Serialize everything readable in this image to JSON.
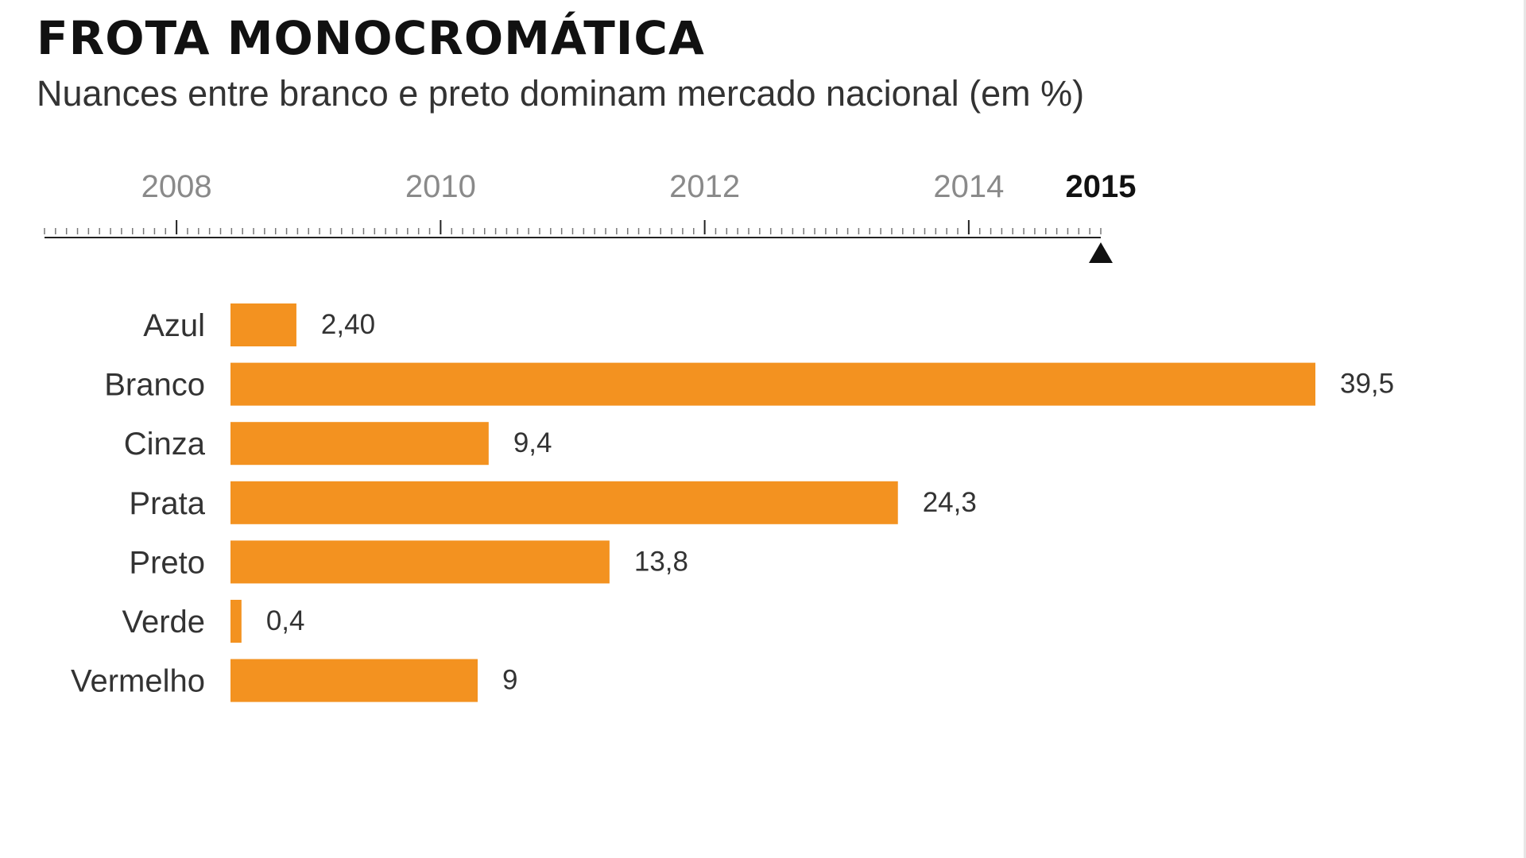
{
  "chart_data": {
    "type": "bar",
    "orientation": "horizontal",
    "title": "FROTA MONOCROMÁTICA",
    "subtitle": "Nuances entre branco e preto dominam mercado nacional (em %)",
    "timeline": {
      "years": [
        "2008",
        "2010",
        "2012",
        "2014",
        "2015"
      ],
      "selected_year": "2015",
      "range": [
        2007,
        2015
      ]
    },
    "categories": [
      "Azul",
      "Branco",
      "Cinza",
      "Prata",
      "Preto",
      "Verde",
      "Vermelho"
    ],
    "values": [
      2.4,
      39.5,
      9.4,
      24.3,
      13.8,
      0.4,
      9
    ],
    "value_labels": [
      "2,40",
      "39,5",
      "9,4",
      "24,3",
      "13,8",
      "0,4",
      "9"
    ],
    "xlim": [
      0,
      39.5
    ],
    "bar_color": "#f39220",
    "xlabel": "",
    "ylabel": ""
  }
}
